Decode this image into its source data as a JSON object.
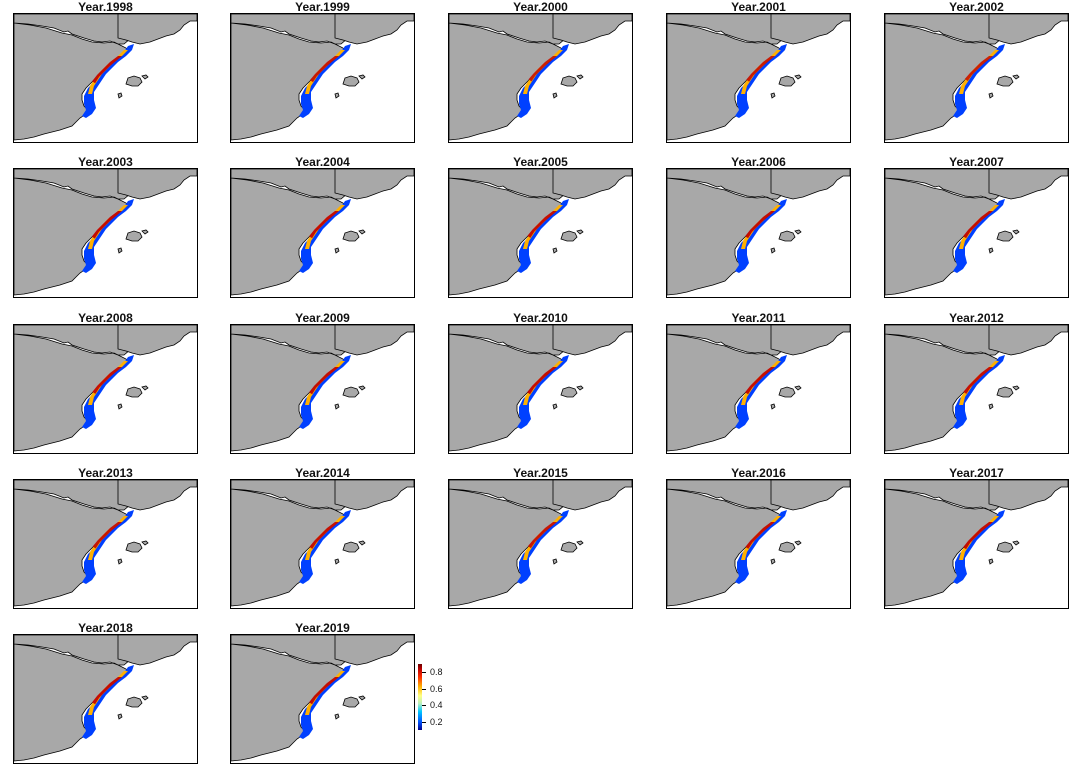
{
  "panels": [
    {
      "title": "Year.1998",
      "intensity": 0.8
    },
    {
      "title": "Year.1999",
      "intensity": 0.65
    },
    {
      "title": "Year.2000",
      "intensity": 0.55
    },
    {
      "title": "Year.2001",
      "intensity": 0.6
    },
    {
      "title": "Year.2002",
      "intensity": 0.5
    },
    {
      "title": "Year.2003",
      "intensity": 0.85
    },
    {
      "title": "Year.2004",
      "intensity": 0.8
    },
    {
      "title": "Year.2005",
      "intensity": 0.75
    },
    {
      "title": "Year.2006",
      "intensity": 0.8
    },
    {
      "title": "Year.2007",
      "intensity": 0.8
    },
    {
      "title": "Year.2008",
      "intensity": 0.75
    },
    {
      "title": "Year.2009",
      "intensity": 0.8
    },
    {
      "title": "Year.2010",
      "intensity": 0.8
    },
    {
      "title": "Year.2011",
      "intensity": 0.8
    },
    {
      "title": "Year.2012",
      "intensity": 0.75
    },
    {
      "title": "Year.2013",
      "intensity": 0.7
    },
    {
      "title": "Year.2014",
      "intensity": 0.75
    },
    {
      "title": "Year.2015",
      "intensity": 0.65
    },
    {
      "title": "Year.2016",
      "intensity": 0.75
    },
    {
      "title": "Year.2017",
      "intensity": 0.8
    },
    {
      "title": "Year.2018",
      "intensity": 0.8
    },
    {
      "title": "Year.2019",
      "intensity": 0.8
    }
  ],
  "legend": {
    "labels": [
      "0.8",
      "0.6",
      "0.4",
      "0.2"
    ],
    "values": [
      0.8,
      0.6,
      0.4,
      0.2
    ],
    "range": [
      0.1,
      0.9
    ]
  },
  "colors": {
    "land": "#a8a8a8",
    "sea": "#ffffff",
    "border": "#000000",
    "high": "#c00000",
    "mid": "#ffb000",
    "low": "#0040ff"
  }
}
